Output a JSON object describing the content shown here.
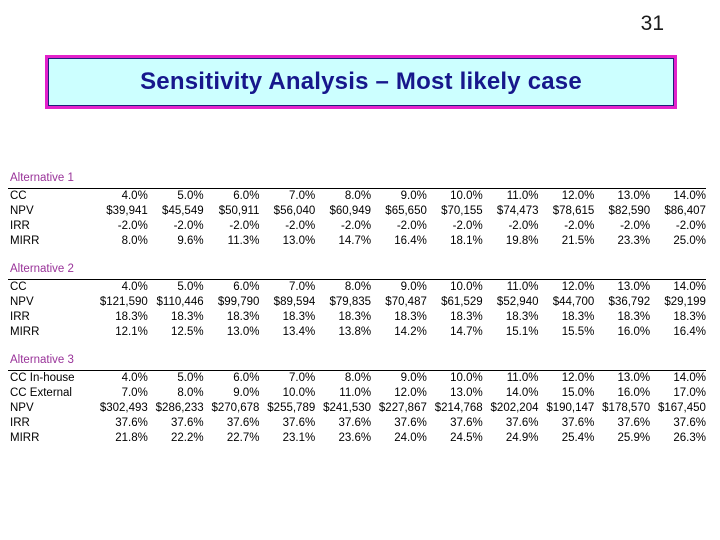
{
  "slide": {
    "number": "31",
    "title": "Sensitivity Analysis – Most likely case"
  },
  "colors": {
    "title_text": "#17178c",
    "title_box_fill": "#ccffff",
    "title_box_border": "#e322cb",
    "title_box_inner_border": "#1f1f7a",
    "section_label": "#993399",
    "table_text": "#000000"
  },
  "chart_data": {
    "type": "table",
    "sections": [
      {
        "label": "Alternative 1",
        "rows": [
          {
            "label": "CC",
            "values": [
              "4.0%",
              "5.0%",
              "6.0%",
              "7.0%",
              "8.0%",
              "9.0%",
              "10.0%",
              "11.0%",
              "12.0%",
              "13.0%",
              "14.0%"
            ]
          },
          {
            "label": "NPV",
            "values": [
              "$39,941",
              "$45,549",
              "$50,911",
              "$56,040",
              "$60,949",
              "$65,650",
              "$70,155",
              "$74,473",
              "$78,615",
              "$82,590",
              "$86,407"
            ]
          },
          {
            "label": "IRR",
            "values": [
              "-2.0%",
              "-2.0%",
              "-2.0%",
              "-2.0%",
              "-2.0%",
              "-2.0%",
              "-2.0%",
              "-2.0%",
              "-2.0%",
              "-2.0%",
              "-2.0%"
            ]
          },
          {
            "label": "MIRR",
            "values": [
              "8.0%",
              "9.6%",
              "11.3%",
              "13.0%",
              "14.7%",
              "16.4%",
              "18.1%",
              "19.8%",
              "21.5%",
              "23.3%",
              "25.0%"
            ]
          }
        ]
      },
      {
        "label": "Alternative 2",
        "rows": [
          {
            "label": "CC",
            "values": [
              "4.0%",
              "5.0%",
              "6.0%",
              "7.0%",
              "8.0%",
              "9.0%",
              "10.0%",
              "11.0%",
              "12.0%",
              "13.0%",
              "14.0%"
            ]
          },
          {
            "label": "NPV",
            "values": [
              "$121,590",
              "$110,446",
              "$99,790",
              "$89,594",
              "$79,835",
              "$70,487",
              "$61,529",
              "$52,940",
              "$44,700",
              "$36,792",
              "$29,199"
            ]
          },
          {
            "label": "IRR",
            "values": [
              "18.3%",
              "18.3%",
              "18.3%",
              "18.3%",
              "18.3%",
              "18.3%",
              "18.3%",
              "18.3%",
              "18.3%",
              "18.3%",
              "18.3%"
            ]
          },
          {
            "label": "MIRR",
            "values": [
              "12.1%",
              "12.5%",
              "13.0%",
              "13.4%",
              "13.8%",
              "14.2%",
              "14.7%",
              "15.1%",
              "15.5%",
              "16.0%",
              "16.4%"
            ]
          }
        ]
      },
      {
        "label": "Alternative 3",
        "rows": [
          {
            "label": "CC In-house",
            "values": [
              "4.0%",
              "5.0%",
              "6.0%",
              "7.0%",
              "8.0%",
              "9.0%",
              "10.0%",
              "11.0%",
              "12.0%",
              "13.0%",
              "14.0%"
            ]
          },
          {
            "label": "CC External",
            "values": [
              "7.0%",
              "8.0%",
              "9.0%",
              "10.0%",
              "11.0%",
              "12.0%",
              "13.0%",
              "14.0%",
              "15.0%",
              "16.0%",
              "17.0%"
            ]
          },
          {
            "label": "NPV",
            "values": [
              "$302,493",
              "$286,233",
              "$270,678",
              "$255,789",
              "$241,530",
              "$227,867",
              "$214,768",
              "$202,204",
              "$190,147",
              "$178,570",
              "$167,450"
            ]
          },
          {
            "label": "IRR",
            "values": [
              "37.6%",
              "37.6%",
              "37.6%",
              "37.6%",
              "37.6%",
              "37.6%",
              "37.6%",
              "37.6%",
              "37.6%",
              "37.6%",
              "37.6%"
            ]
          },
          {
            "label": "MIRR",
            "values": [
              "21.8%",
              "22.2%",
              "22.7%",
              "23.1%",
              "23.6%",
              "24.0%",
              "24.5%",
              "24.9%",
              "25.4%",
              "25.9%",
              "26.3%"
            ]
          }
        ]
      }
    ]
  }
}
